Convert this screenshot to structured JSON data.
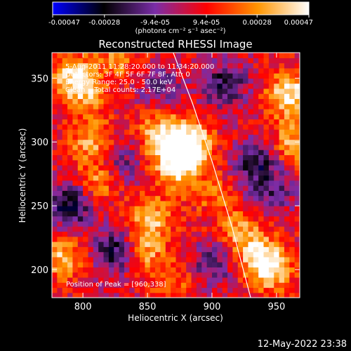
{
  "chart_data": {
    "type": "heatmap",
    "title": "Reconstructed RHESSI Image",
    "xlabel": "Heliocentric X (arcsec)",
    "ylabel": "Heliocentric Y (arcsec)",
    "xlim": [
      776,
      968
    ],
    "ylim": [
      178,
      370
    ],
    "x_ticks": [
      800,
      850,
      900,
      950
    ],
    "y_ticks": [
      200,
      250,
      300,
      350
    ],
    "colorbar": {
      "ticks": [
        "-0.00047",
        "-0.00028",
        "-9.4e-05",
        "9.4e-05",
        "0.00028",
        "0.00047"
      ],
      "tick_values": [
        -0.00047,
        -0.00028,
        -9.4e-05,
        9.4e-05,
        0.00028,
        0.00047
      ],
      "range": [
        -0.00047,
        0.00047
      ],
      "unit_label": "(photons cm⁻² s⁻¹ asec⁻²)",
      "colormap": [
        "#0000ff",
        "#000000",
        "#7a2da8",
        "#ff0000",
        "#ff9500",
        "#ffffff"
      ]
    },
    "annotations": [
      "5-Aug-2011 11:28:20.000 to 11:34:20.000",
      "Detectors: 3F 4F 5F 6F 7F 8F, Att: 0",
      "Energy Range: 25.0 - 50.0 keV",
      "Clean    Total counts: 2.17E+04",
      "Position of Peak = [960,338]"
    ],
    "peak": {
      "x": 960,
      "y": 338
    },
    "limb_curve": [
      [
        870,
        370
      ],
      [
        885,
        330
      ],
      [
        900,
        285
      ],
      [
        915,
        235
      ],
      [
        930,
        178
      ]
    ],
    "bright_sources": [
      {
        "x": 883,
        "y": 300,
        "level": 0.00047
      },
      {
        "x": 872,
        "y": 280,
        "level": 0.0004
      },
      {
        "x": 860,
        "y": 305,
        "level": 0.00035
      },
      {
        "x": 800,
        "y": 340,
        "level": 0.0003
      },
      {
        "x": 806,
        "y": 302,
        "level": 0.00028
      },
      {
        "x": 812,
        "y": 270,
        "level": 0.00024
      },
      {
        "x": 790,
        "y": 355,
        "level": 0.00026
      },
      {
        "x": 783,
        "y": 210,
        "level": 0.0003
      },
      {
        "x": 852,
        "y": 240,
        "level": 0.0003
      },
      {
        "x": 848,
        "y": 215,
        "level": 0.00025
      },
      {
        "x": 920,
        "y": 232,
        "level": 0.00022
      },
      {
        "x": 935,
        "y": 214,
        "level": 0.00028
      },
      {
        "x": 945,
        "y": 200,
        "level": 0.00035
      },
      {
        "x": 960,
        "y": 338,
        "level": 0.00042
      },
      {
        "x": 962,
        "y": 300,
        "level": 0.00028
      },
      {
        "x": 828,
        "y": 365,
        "level": 0.0002
      },
      {
        "x": 900,
        "y": 260,
        "level": 0.00016
      },
      {
        "x": 870,
        "y": 190,
        "level": 0.00018
      }
    ],
    "dark_sources": [
      {
        "x": 790,
        "y": 250,
        "level": -0.00035
      },
      {
        "x": 825,
        "y": 215,
        "level": -0.0003
      },
      {
        "x": 830,
        "y": 285,
        "level": -0.0002
      },
      {
        "x": 910,
        "y": 345,
        "level": -0.00028
      },
      {
        "x": 935,
        "y": 285,
        "level": -0.0003
      },
      {
        "x": 900,
        "y": 205,
        "level": -0.00022
      },
      {
        "x": 860,
        "y": 345,
        "level": -0.00016
      },
      {
        "x": 945,
        "y": 260,
        "level": -0.0002
      }
    ]
  },
  "footer": {
    "timestamp": "12-May-2022 23:38"
  }
}
